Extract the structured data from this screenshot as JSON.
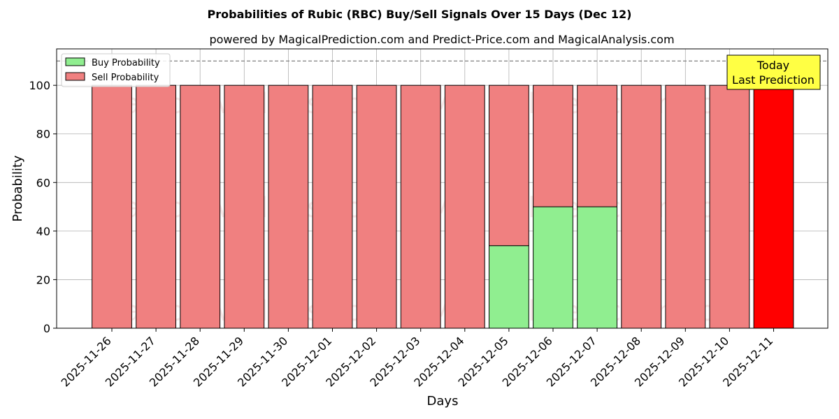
{
  "chart_data": {
    "type": "bar",
    "title": "Probabilities of Rubic (RBC) Buy/Sell Signals Over 15 Days (Dec 12)",
    "subtitle": "powered by MagicalPrediction.com and Predict-Price.com and MagicalAnalysis.com",
    "xlabel": "Days",
    "ylabel": "Probability",
    "ylim": [
      0,
      115
    ],
    "yticks": [
      0,
      20,
      40,
      60,
      80,
      100
    ],
    "grid": true,
    "legend_position": "top-left",
    "reference_line": 110,
    "categories": [
      "2025-11-26",
      "2025-11-27",
      "2025-11-28",
      "2025-11-29",
      "2025-11-30",
      "2025-12-01",
      "2025-12-02",
      "2025-12-03",
      "2025-12-04",
      "2025-12-05",
      "2025-12-06",
      "2025-12-07",
      "2025-12-08",
      "2025-12-09",
      "2025-12-10",
      "2025-12-11"
    ],
    "series": [
      {
        "name": "Buy Probability",
        "color": "#90ee90",
        "values": [
          0,
          0,
          0,
          0,
          0,
          0,
          0,
          0,
          0,
          34,
          50,
          50,
          0,
          0,
          0,
          0
        ]
      },
      {
        "name": "Sell Probability",
        "color": "#f08080",
        "values": [
          100,
          100,
          100,
          100,
          100,
          100,
          100,
          100,
          100,
          66,
          50,
          50,
          100,
          100,
          100,
          100
        ]
      }
    ],
    "highlight": {
      "index": 15,
      "color": "#ff0000"
    },
    "annotation": {
      "lines": [
        "Today",
        "Last Prediction"
      ],
      "color": "#ffff44"
    },
    "watermarks": [
      "MagicalAnalysis.com",
      "MagicalPrediction.com"
    ]
  }
}
